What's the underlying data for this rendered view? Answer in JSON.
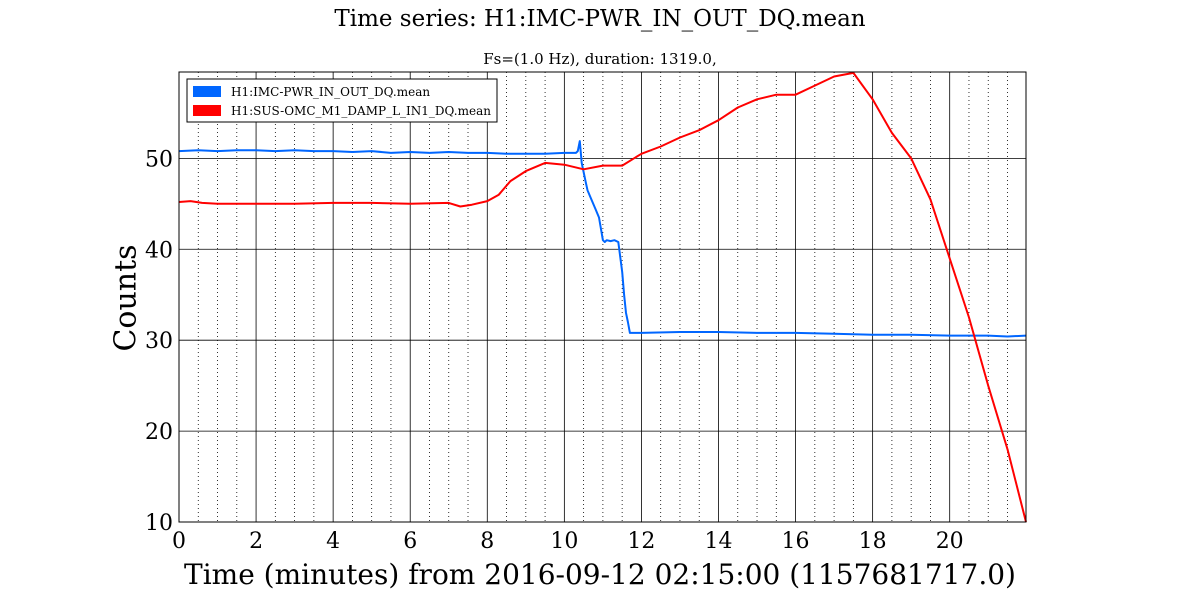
{
  "chart_data": {
    "type": "line",
    "title": "Time series:  H1:IMC-PWR_IN_OUT_DQ.mean",
    "subtitle": "Fs=(1.0 Hz), duration:  1319.0,",
    "xlabel": "Time (minutes) from 2016-09-12 02:15:00 (1157681717.0)",
    "ylabel": "Counts",
    "xlim": [
      0,
      21.98
    ],
    "ylim": [
      10,
      59.5
    ],
    "x_ticks": [
      0,
      2,
      4,
      6,
      8,
      10,
      12,
      14,
      16,
      18,
      20
    ],
    "x_minor_step": 0.5,
    "y_ticks": [
      10,
      20,
      30,
      40,
      50
    ],
    "grid": "major solid, minor x dotted",
    "legend_position": "top-left",
    "series": [
      {
        "name": "H1:IMC-PWR_IN_OUT_DQ.mean",
        "color": "#0066ff",
        "x": [
          0,
          0.5,
          1,
          1.5,
          2,
          2.5,
          3,
          3.5,
          4,
          4.5,
          5,
          5.5,
          6,
          6.5,
          7,
          7.5,
          8,
          8.5,
          9,
          9.5,
          10,
          10.3,
          10.35,
          10.4,
          10.45,
          10.5,
          10.55,
          10.6,
          10.7,
          10.8,
          10.9,
          11.0,
          11.05,
          11.1,
          11.2,
          11.3,
          11.4,
          11.5,
          11.55,
          11.6,
          11.65,
          11.7,
          12,
          13,
          14,
          15,
          16,
          17,
          18,
          19,
          20,
          21,
          21.5,
          21.98
        ],
        "y": [
          50.8,
          50.9,
          50.8,
          50.9,
          50.9,
          50.8,
          50.9,
          50.8,
          50.8,
          50.7,
          50.8,
          50.6,
          50.7,
          50.6,
          50.7,
          50.6,
          50.6,
          50.5,
          50.5,
          50.5,
          50.6,
          50.6,
          50.8,
          51.9,
          49.5,
          48.5,
          47.5,
          46.5,
          45.5,
          44.5,
          43.5,
          41.0,
          40.8,
          41.0,
          40.9,
          41.0,
          40.8,
          37.5,
          35.0,
          33.0,
          32.0,
          30.8,
          30.8,
          30.9,
          30.9,
          30.8,
          30.8,
          30.7,
          30.6,
          30.6,
          30.5,
          30.5,
          30.4,
          30.5
        ]
      },
      {
        "name": "H1:SUS-OMC_M1_DAMP_L_IN1_DQ.mean",
        "color": "#ff0000",
        "x": [
          0,
          0.3,
          0.6,
          1,
          2,
          3,
          4,
          5,
          6,
          7,
          7.3,
          7.6,
          8,
          8.3,
          8.6,
          9,
          9.5,
          10,
          10.5,
          11,
          11.5,
          12,
          12.5,
          13,
          13.5,
          14,
          14.5,
          15,
          15.5,
          16,
          16.5,
          17,
          17.5,
          18,
          18.5,
          19,
          19.5,
          20,
          20.5,
          21,
          21.5,
          21.98
        ],
        "y": [
          45.2,
          45.3,
          45.1,
          45.0,
          45.0,
          45.0,
          45.1,
          45.1,
          45.0,
          45.1,
          44.7,
          44.9,
          45.3,
          46.0,
          47.5,
          48.6,
          49.5,
          49.3,
          48.8,
          49.2,
          49.2,
          50.5,
          51.3,
          52.3,
          53.1,
          54.2,
          55.6,
          56.5,
          57.0,
          57.0,
          58.0,
          59.0,
          59.4,
          56.5,
          52.8,
          50.0,
          45.5,
          39.0,
          32.5,
          25.0,
          18.0,
          10.0
        ]
      }
    ]
  }
}
